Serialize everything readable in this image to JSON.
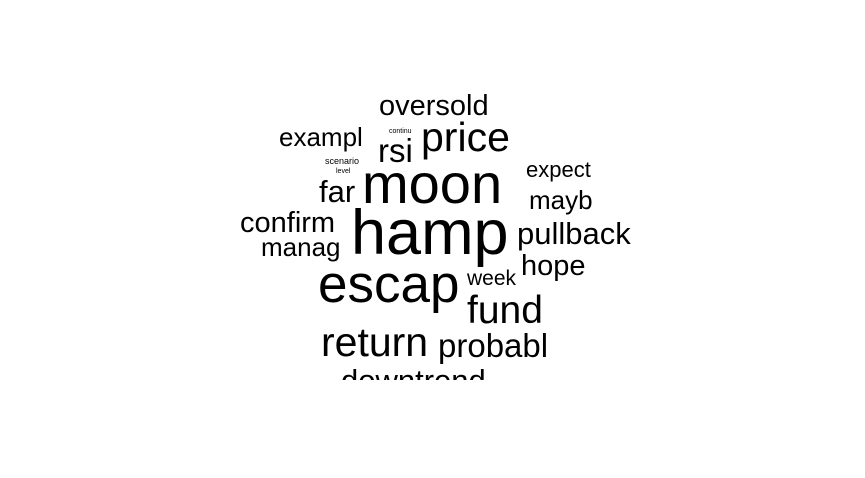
{
  "words": [
    {
      "text": "oversold"
    },
    {
      "text": "exampl"
    },
    {
      "text": "continu"
    },
    {
      "text": "rsi"
    },
    {
      "text": "price"
    },
    {
      "text": "scenario"
    },
    {
      "text": "level"
    },
    {
      "text": "expect"
    },
    {
      "text": "far"
    },
    {
      "text": "moon"
    },
    {
      "text": "mayb"
    },
    {
      "text": "confirm"
    },
    {
      "text": "hamp"
    },
    {
      "text": "pullback"
    },
    {
      "text": "manag"
    },
    {
      "text": "hope"
    },
    {
      "text": "week"
    },
    {
      "text": "escap"
    },
    {
      "text": "fund"
    },
    {
      "text": "return"
    },
    {
      "text": "probabl"
    },
    {
      "text": "downtrend"
    }
  ]
}
